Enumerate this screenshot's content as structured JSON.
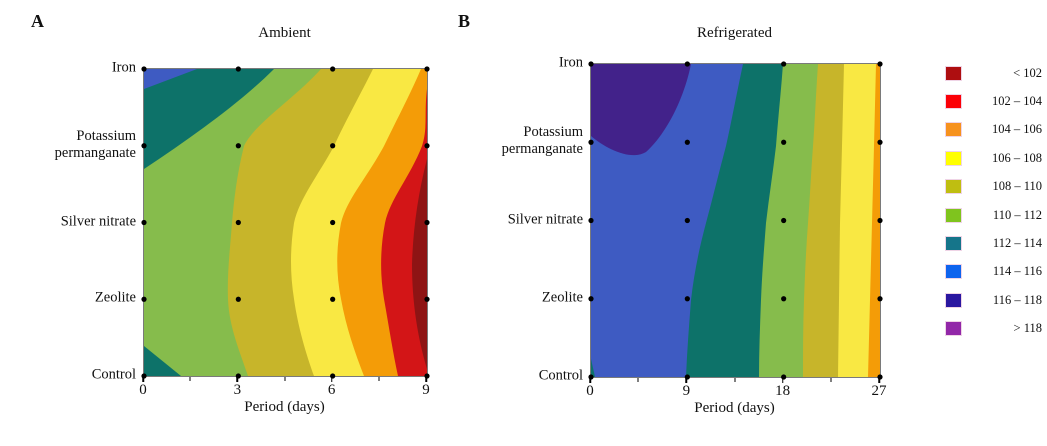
{
  "figure": {
    "panels": [
      {
        "label": "A",
        "title": "Ambient",
        "xlabel": "Period (days)",
        "x_ticks": [
          "0",
          "3",
          "6",
          "9"
        ],
        "y_categories": [
          "Iron",
          "Potassium permanganate",
          "Silver nitrate",
          "Zeolite",
          "Control"
        ]
      },
      {
        "label": "B",
        "title": "Refrigerated",
        "xlabel": "Period (days)",
        "x_ticks": [
          "0",
          "9",
          "18",
          "27"
        ],
        "y_categories": [
          "Iron",
          "Potassium permanganate",
          "Silver nitrate",
          "Zeolite",
          "Control"
        ]
      }
    ]
  },
  "legend": {
    "bins": [
      {
        "label": "< 102",
        "color": "#AE0E10"
      },
      {
        "label": "102 – 104",
        "color": "#FB0007"
      },
      {
        "label": "104 – 106",
        "color": "#F6921E"
      },
      {
        "label": "106 – 108",
        "color": "#FFFF00"
      },
      {
        "label": "108 – 110",
        "color": "#BFBE11"
      },
      {
        "label": "110 – 112",
        "color": "#7FC41E"
      },
      {
        "label": "112 – 114",
        "color": "#15758A"
      },
      {
        "label": "114 – 116",
        "color": "#0E64EE"
      },
      {
        "label": "116 – 118",
        "color": "#2A17A0"
      },
      {
        "label": "> 118",
        "color": "#9227A8"
      }
    ]
  },
  "chart_data": [
    {
      "type": "heatmap",
      "subtype": "filled-contour",
      "panel": "A",
      "title": "Ambient",
      "xlabel": "Period (days)",
      "x": [
        0,
        3,
        6,
        9
      ],
      "y_categories": [
        "Iron",
        "Potassium permanganate",
        "Silver nitrate",
        "Zeolite",
        "Control"
      ],
      "z_bins": [
        "< 102",
        "102 – 104",
        "104 – 106",
        "106 – 108",
        "108 – 110",
        "110 – 112",
        "112 – 114",
        "114 – 116",
        "116 – 118",
        "> 118"
      ],
      "z_estimated": {
        "Iron": [
          114,
          113,
          109,
          105
        ],
        "Potassium permanganate": [
          113,
          111,
          107,
          103
        ],
        "Silver nitrate": [
          111,
          109,
          107,
          101
        ],
        "Zeolite": [
          111,
          109,
          107,
          101
        ],
        "Control": [
          113,
          110,
          107,
          102
        ]
      },
      "note": "z values estimated from contour band colors at each grid dot; legend bins give the scale",
      "grid": false,
      "legend_position": "right-of-figure"
    },
    {
      "type": "heatmap",
      "subtype": "filled-contour",
      "panel": "B",
      "title": "Refrigerated",
      "xlabel": "Period (days)",
      "x": [
        0,
        9,
        18,
        27
      ],
      "y_categories": [
        "Iron",
        "Potassium permanganate",
        "Silver nitrate",
        "Zeolite",
        "Control"
      ],
      "z_bins": [
        "< 102",
        "102 – 104",
        "104 – 106",
        "106 – 108",
        "108 – 110",
        "110 – 112",
        "112 – 114",
        "114 – 116",
        "116 – 118",
        "> 118"
      ],
      "z_estimated": {
        "Iron": [
          117,
          116,
          111,
          105
        ],
        "Potassium permanganate": [
          116,
          115,
          111,
          105
        ],
        "Silver nitrate": [
          115,
          114,
          111,
          105
        ],
        "Zeolite": [
          115,
          114,
          111,
          105
        ],
        "Control": [
          113,
          113,
          110,
          105
        ]
      },
      "note": "z values estimated from contour band colors at each grid dot; legend bins give the scale",
      "grid": false,
      "legend_position": "right-of-figure"
    }
  ],
  "plot_colors": {
    "green": "#86BC4C",
    "olive": "#C7B52A",
    "yellow": "#F9E843",
    "orange": "#F49C07",
    "red": "#D31517",
    "dark_red": "#8E1414",
    "teal": "#0D7269",
    "blue": "#3E5BC2",
    "indigo": "#42228A"
  }
}
